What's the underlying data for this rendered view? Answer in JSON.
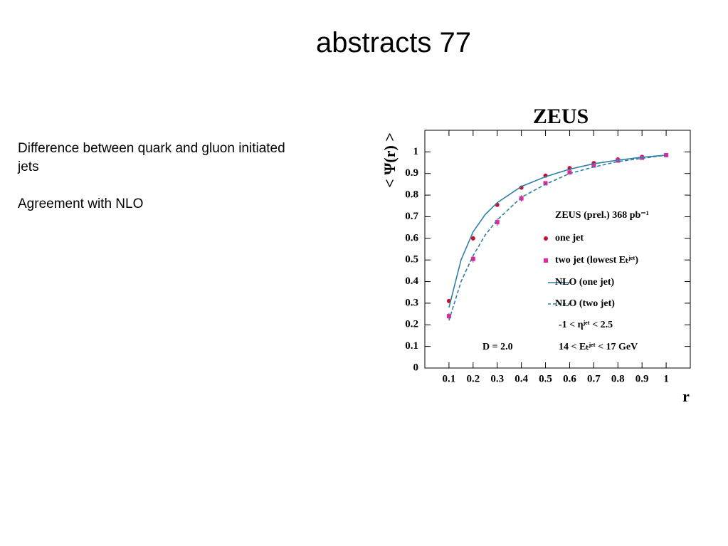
{
  "slide": {
    "title": "abstracts 77",
    "paragraphs": [
      "Difference between quark and gluon initiated jets",
      "Agreement with NLO"
    ]
  },
  "chart_data": {
    "type": "scatter",
    "title": "ZEUS",
    "x_label": "r",
    "y_label": "< Ψ(r) >",
    "xlim": [
      0,
      1.1
    ],
    "ylim": [
      0,
      1.1
    ],
    "xticks": [
      0.1,
      0.2,
      0.3,
      0.4,
      0.5,
      0.6,
      0.7,
      0.8,
      0.9,
      1
    ],
    "yticks": [
      0,
      0.1,
      0.2,
      0.3,
      0.4,
      0.5,
      0.6,
      0.7,
      0.8,
      0.9,
      1
    ],
    "legend_title": "ZEUS (prel.) 368 pb⁻¹",
    "series": [
      {
        "name": "one jet",
        "color": "#c8102e",
        "mode": "markers",
        "marker": "circle",
        "x": [
          0.1,
          0.2,
          0.3,
          0.4,
          0.5,
          0.6,
          0.7,
          0.8,
          0.9,
          1
        ],
        "values": [
          0.31,
          0.6,
          0.755,
          0.835,
          0.89,
          0.925,
          0.948,
          0.965,
          0.977,
          0.985
        ],
        "errors": [
          0.01,
          0.012,
          0.01,
          0.008,
          0.006,
          0.005,
          0.004,
          0.003,
          0.003,
          0.002
        ]
      },
      {
        "name": "two jet (lowest Eₜʲᵉᵗ)",
        "color": "#e8259a",
        "mode": "markers",
        "marker": "square",
        "x": [
          0.1,
          0.2,
          0.3,
          0.4,
          0.5,
          0.6,
          0.7,
          0.8,
          0.9,
          1
        ],
        "values": [
          0.24,
          0.505,
          0.675,
          0.785,
          0.855,
          0.905,
          0.937,
          0.96,
          0.973,
          0.985
        ],
        "errors": [
          0.015,
          0.017,
          0.018,
          0.015,
          0.008,
          0.006,
          0.005,
          0.004,
          0.003,
          0.002
        ]
      },
      {
        "name": "NLO (one jet)",
        "color": "#2f7fa6",
        "mode": "line",
        "dash": false,
        "x": [
          0.1,
          0.15,
          0.2,
          0.25,
          0.3,
          0.4,
          0.5,
          0.6,
          0.7,
          0.8,
          0.9,
          1
        ],
        "values": [
          0.28,
          0.5,
          0.63,
          0.71,
          0.765,
          0.84,
          0.885,
          0.92,
          0.945,
          0.962,
          0.975,
          0.985
        ]
      },
      {
        "name": "NLO (two jet)",
        "color": "#2f7fa6",
        "mode": "line",
        "dash": true,
        "x": [
          0.1,
          0.15,
          0.2,
          0.25,
          0.3,
          0.4,
          0.5,
          0.6,
          0.7,
          0.8,
          0.9,
          1
        ],
        "values": [
          0.22,
          0.4,
          0.52,
          0.615,
          0.685,
          0.79,
          0.85,
          0.9,
          0.93,
          0.955,
          0.97,
          0.985
        ]
      }
    ],
    "annotations": [
      "-1 < ηʲᵉᵗ < 2.5",
      "D = 2.0",
      "14 < Eₜʲᵉᵗ < 17 GeV"
    ]
  }
}
